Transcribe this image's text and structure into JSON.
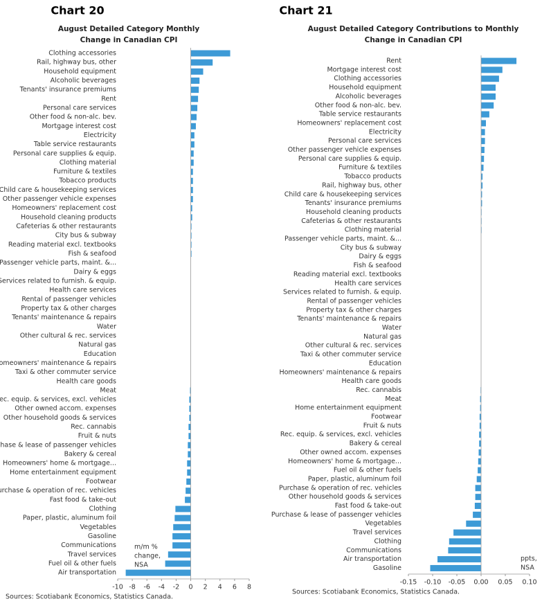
{
  "chart_data": [
    {
      "type": "bar",
      "orientation": "horizontal",
      "title": "Chart 20",
      "subtitle": [
        "August Detailed Category Monthly",
        "Change in Canadian CPI"
      ],
      "annotation": [
        "m/m %",
        "change,",
        "NSA"
      ],
      "source": "Sources: Scotiabank Economics, Statistics Canada.",
      "color": "#3d9ad6",
      "categories": [
        "Clothing accessories",
        "Rail, highway bus, other",
        "Household equipment",
        "Alcoholic beverages",
        "Tenants' insurance premiums",
        "Rent",
        "Personal care services",
        "Other food & non-alc. bev.",
        "Mortgage interest cost",
        "Electricity",
        "Table service restaurants",
        "Personal care supplies & equip.",
        "Clothing material",
        "Furniture & textiles",
        "Tobacco products",
        "Child care & housekeeping services",
        "Other passenger vehicle expenses",
        "Homeowners' replacement cost",
        "Household cleaning products",
        "Cafeterias & other restaurants",
        "City bus & subway",
        "Reading material excl. textbooks",
        "Fish & seafood",
        "Passenger vehicle parts, maint. &...",
        "Dairy & eggs",
        "Services related to furnish. & equip.",
        "Health care services",
        "Rental of passenger vehicles",
        "Property tax & other charges",
        "Tenants' maintenance & repairs",
        "Water",
        "Other cultural & rec. services",
        "Natural gas",
        "Education",
        "Homeowners' maintenance & repairs",
        "Taxi & other commuter service",
        "Health care goods",
        "Meat",
        "Rec. equip. & services, excl. vehicles",
        "Other owned accom. expenses",
        "Other household goods & services",
        "Rec. cannabis",
        "Fruit & nuts",
        "Purchase & lease of passenger vehicles",
        "Bakery & cereal",
        "Homeowners' home & mortgage...",
        "Home entertainment equipment",
        "Footwear",
        "Purchase & operation of rec. vehicles",
        "Fast food & take-out",
        "Clothing",
        "Paper, plastic, aluminum foil",
        "Vegetables",
        "Gasoline",
        "Communications",
        "Travel services",
        "Fuel oil & other fuels",
        "Air transportation"
      ],
      "values": [
        5.4,
        3.0,
        1.7,
        1.2,
        1.1,
        1.0,
        0.9,
        0.8,
        0.7,
        0.5,
        0.5,
        0.4,
        0.4,
        0.3,
        0.3,
        0.3,
        0.3,
        0.2,
        0.2,
        0.1,
        0.1,
        0.1,
        0.1,
        0.0,
        0.0,
        0.0,
        0.0,
        0.0,
        0.0,
        0.0,
        0.0,
        0.0,
        0.0,
        0.0,
        0.0,
        0.0,
        0.0,
        -0.1,
        -0.2,
        -0.2,
        -0.2,
        -0.3,
        -0.3,
        -0.4,
        -0.4,
        -0.5,
        -0.5,
        -0.6,
        -0.7,
        -0.8,
        -2.1,
        -2.2,
        -2.4,
        -2.5,
        -2.5,
        -3.1,
        -3.5,
        -8.9
      ],
      "xlim": [
        -10,
        8
      ],
      "xticks": [
        -10,
        -8,
        -6,
        -4,
        -2,
        0,
        2,
        4,
        6,
        8
      ]
    },
    {
      "type": "bar",
      "orientation": "horizontal",
      "title": "Chart 21",
      "subtitle": [
        "August Detailed Category Contributions to Monthly",
        "Change in Canadian CPI"
      ],
      "annotation": [
        "ppts,",
        "NSA"
      ],
      "source": "Sources: Scotiabank Economics, Statistics Canada.",
      "color": "#3d9ad6",
      "categories": [
        "Rent",
        "Mortgage interest cost",
        "Clothing accessories",
        "Household equipment",
        "Alcoholic beverages",
        "Other food & non-alc. bev.",
        "Table service restaurants",
        "Homeowners' replacement cost",
        "Electricity",
        "Personal care services",
        "Other passenger vehicle expenses",
        "Personal care supplies & equip.",
        "Furniture & textiles",
        "Tobacco products",
        "Rail, highway bus, other",
        "Child care & housekeeping services",
        "Tenants' insurance premiums",
        "Household cleaning products",
        "Cafeterias & other restaurants",
        "Clothing material",
        "Passenger vehicle parts, maint. &...",
        "City bus & subway",
        "Dairy & eggs",
        "Fish & seafood",
        "Reading material excl. textbooks",
        "Health care services",
        "Services related to furnish. & equip.",
        "Rental of passenger vehicles",
        "Property tax & other charges",
        "Tenants' maintenance & repairs",
        "Water",
        "Natural gas",
        "Other cultural & rec. services",
        "Taxi & other commuter service",
        "Education",
        "Homeowners' maintenance & repairs",
        "Health care goods",
        "Rec. cannabis",
        "Meat",
        "Home entertainment equipment",
        "Footwear",
        "Fruit & nuts",
        "Rec. equip. & services, excl. vehicles",
        "Bakery & cereal",
        "Other owned accom. expenses",
        "Homeowners' home & mortgage...",
        "Fuel oil & other fuels",
        "Paper, plastic, aluminum foil",
        "Purchase & operation of rec. vehicles",
        "Other household goods & services",
        "Fast food & take-out",
        "Purchase & lease of passenger vehicles",
        "Vegetables",
        "Travel services",
        "Clothing",
        "Communications",
        "Air transportation",
        "Gasoline"
      ],
      "values": [
        0.073,
        0.044,
        0.037,
        0.03,
        0.03,
        0.026,
        0.017,
        0.01,
        0.008,
        0.008,
        0.007,
        0.006,
        0.005,
        0.003,
        0.003,
        0.002,
        0.002,
        0.001,
        0.001,
        0.001,
        0.0,
        0.0,
        0.0,
        0.0,
        0.0,
        0.0,
        0.0,
        0.0,
        0.0,
        0.0,
        0.0,
        0.0,
        0.0,
        0.0,
        0.0,
        0.0,
        0.0,
        -0.001,
        -0.002,
        -0.002,
        -0.003,
        -0.003,
        -0.004,
        -0.004,
        -0.005,
        -0.006,
        -0.007,
        -0.009,
        -0.012,
        -0.012,
        -0.013,
        -0.017,
        -0.031,
        -0.057,
        -0.066,
        -0.068,
        -0.09,
        -0.105
      ],
      "xlim": [
        -0.15,
        0.1
      ],
      "xticks": [
        -0.15,
        {
          "value": -0.1,
          "label": "-0.10"
        },
        -0.05,
        {
          "value": 0,
          "label": "0.00"
        },
        0.05,
        {
          "value": 0.1,
          "label": "0.10"
        }
      ]
    }
  ]
}
